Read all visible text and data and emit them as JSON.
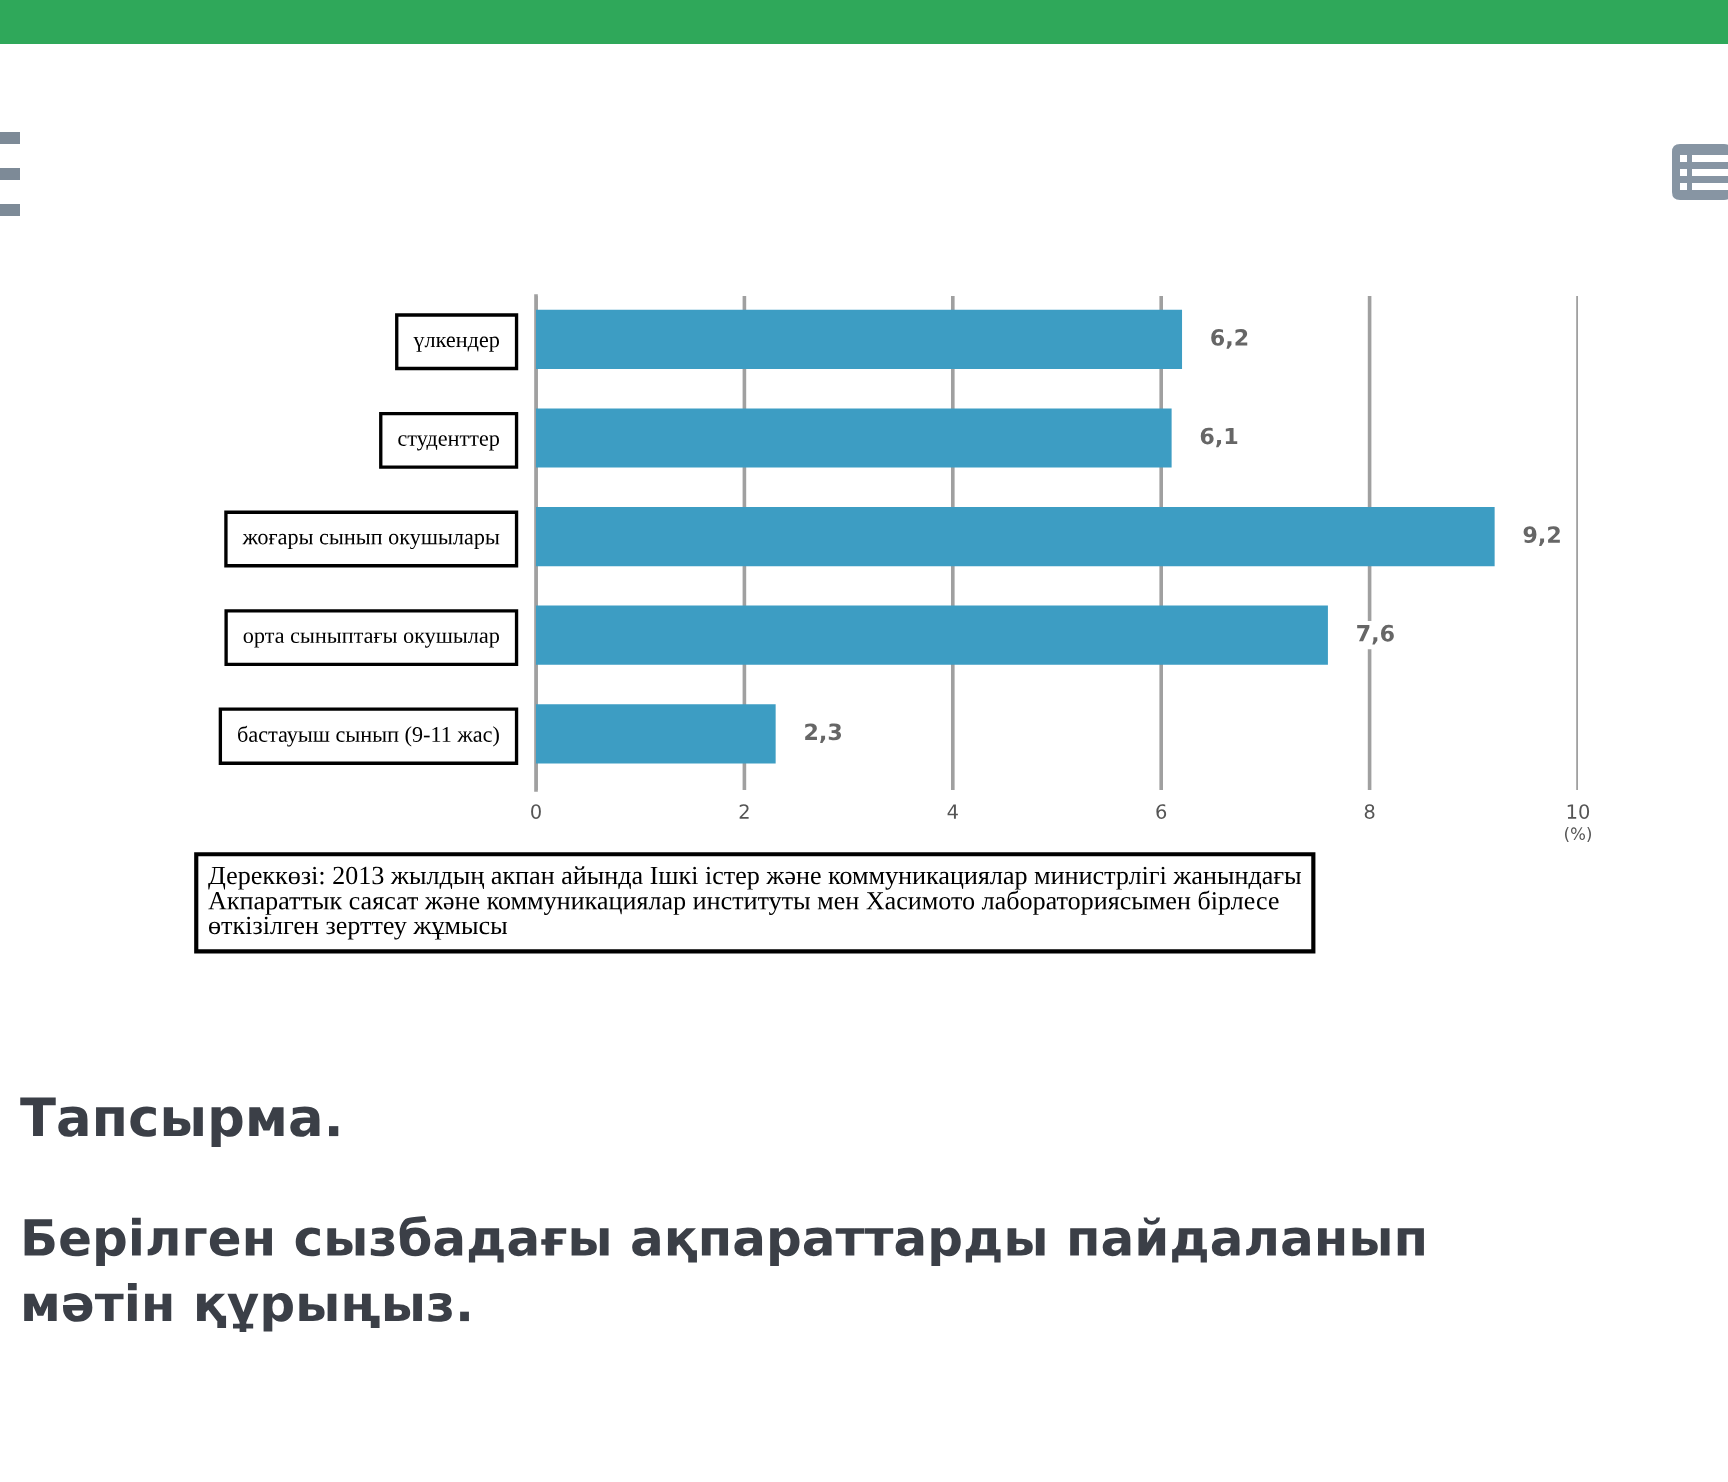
{
  "chart_data": {
    "type": "bar",
    "orientation": "horizontal",
    "categories": [
      "үлкендер",
      "студенттер",
      "жоғары сынып окушылары",
      "орта сыныптағы окушылар",
      "бастауыш сынып (9-11 жас)"
    ],
    "values": [
      6.2,
      6.1,
      9.2,
      7.6,
      2.3
    ],
    "color": "#3d9dc3",
    "value_labels": [
      "6,2",
      "6,1",
      "9,2",
      "7,6",
      "2,3"
    ],
    "xlim": [
      0,
      10
    ],
    "xticks": [
      0,
      2,
      4,
      6,
      8,
      10
    ],
    "xlabel": "(%)",
    "grid": "x",
    "annotations": [
      "Дереккөзі: 2013 жылдың акпан айында Ішкі істер және коммуникациялар министрлігі жанындағы\nАкпараттык саясат және коммуникациялар институты мен Хасимото лабораториясымен бірлесе\nөткізілген зерттеу жұмысы",
      "Тапсырма.",
      "Берілген сызбадағы ақпараттарды пайдаланып\nмәтін құрыңыз."
    ]
  }
}
